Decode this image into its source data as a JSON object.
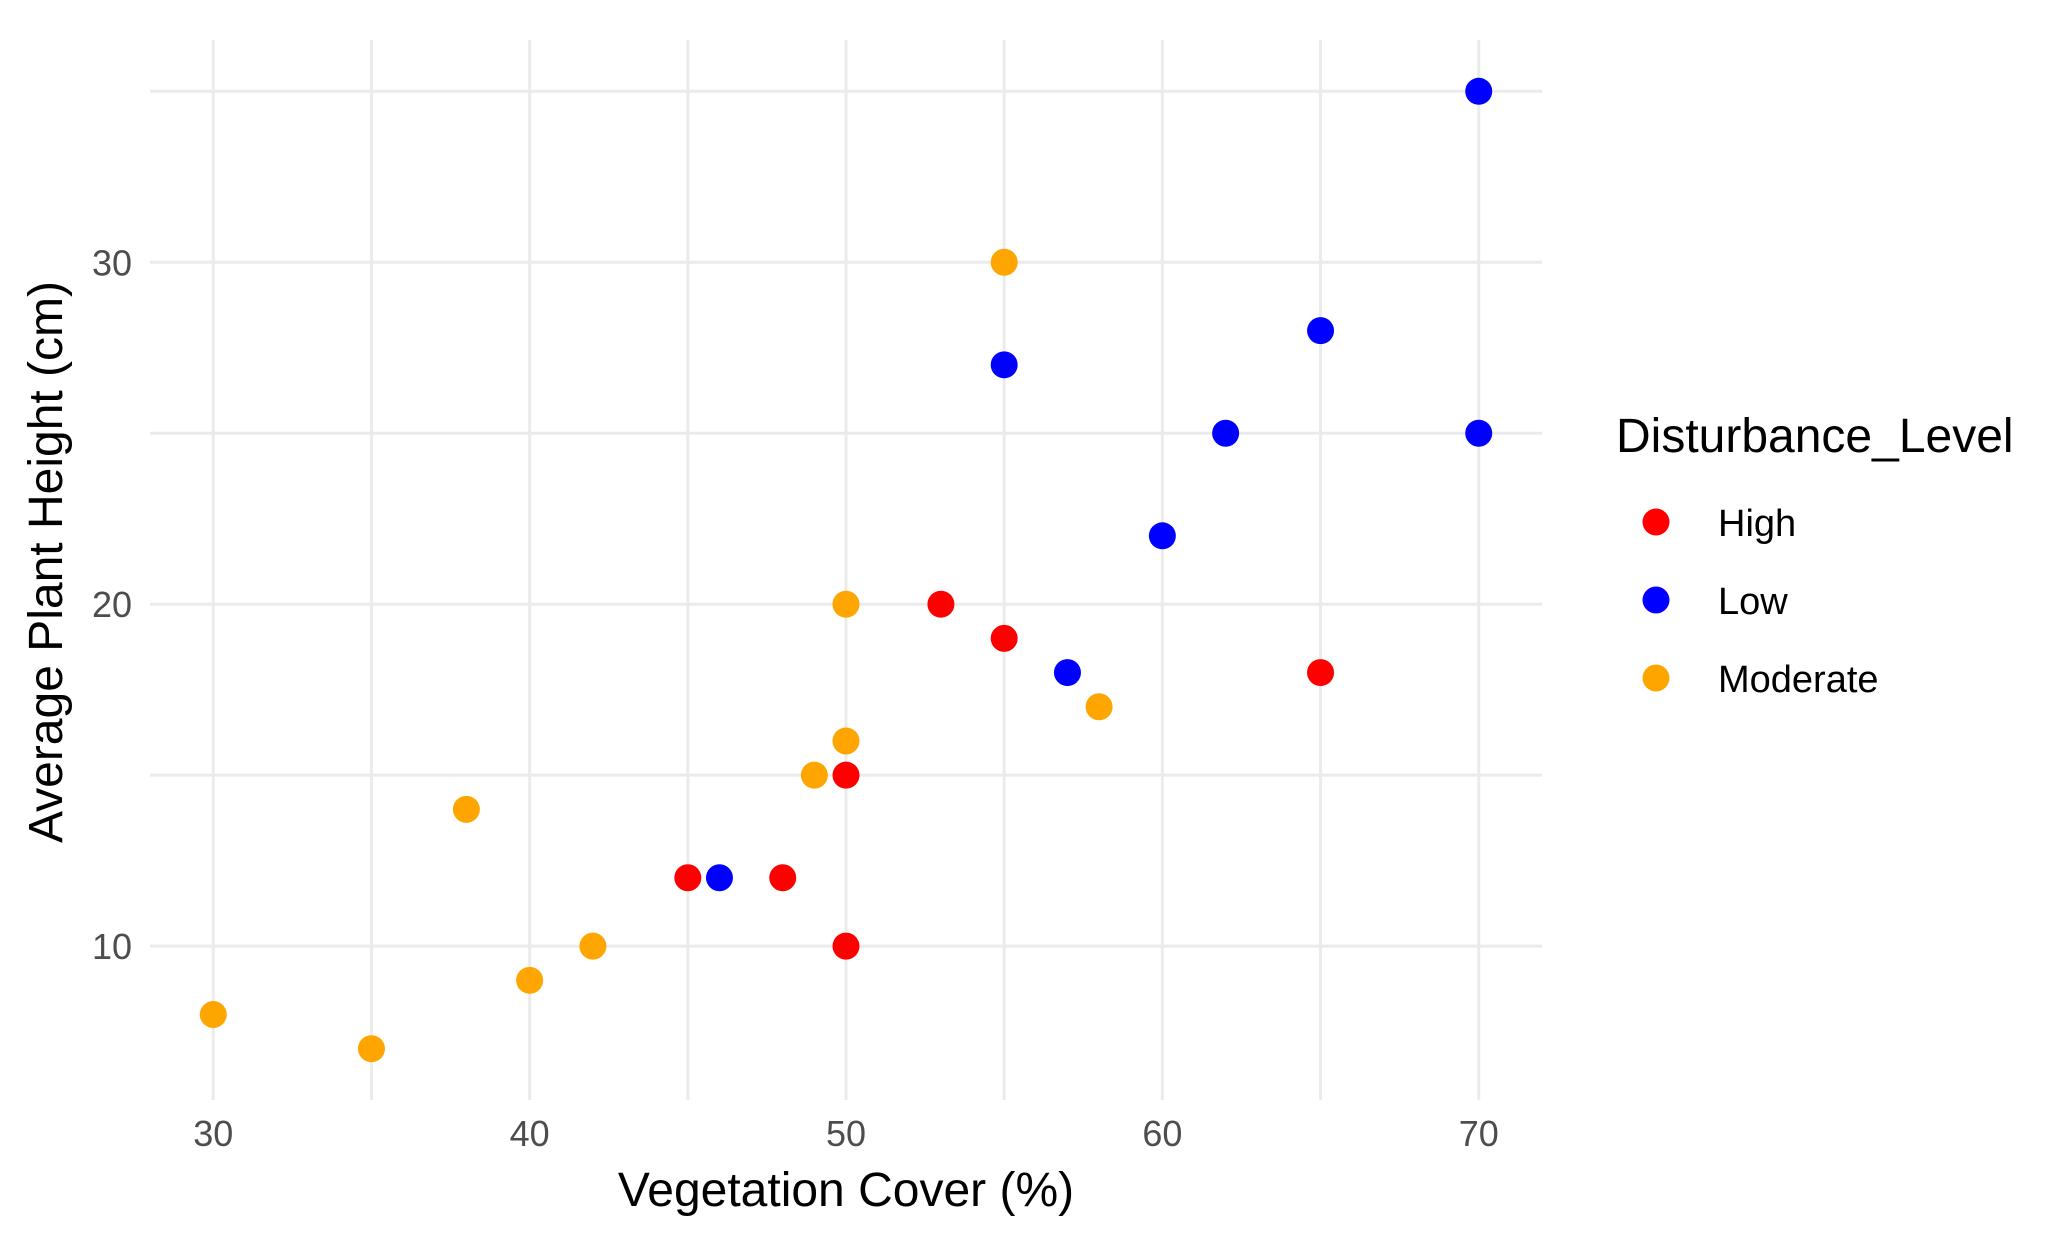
{
  "chart_data": {
    "type": "scatter",
    "title": "",
    "xlabel": "Vegetation Cover (%)",
    "ylabel": "Average Plant Height (cm)",
    "xlim": [
      28,
      72
    ],
    "ylim": [
      5.5,
      36.5
    ],
    "xticks": [
      30,
      40,
      50,
      60,
      70
    ],
    "yticks": [
      10,
      20,
      30
    ],
    "grid": true,
    "legend": {
      "title": "Disturbance_Level",
      "position": "right"
    },
    "series": [
      {
        "name": "High",
        "color": "#ff0000",
        "points": [
          {
            "x": 45,
            "y": 12
          },
          {
            "x": 48,
            "y": 12
          },
          {
            "x": 50,
            "y": 15
          },
          {
            "x": 50,
            "y": 10
          },
          {
            "x": 53,
            "y": 20
          },
          {
            "x": 55,
            "y": 19
          },
          {
            "x": 65,
            "y": 18
          }
        ]
      },
      {
        "name": "Low",
        "color": "#0000ff",
        "points": [
          {
            "x": 46,
            "y": 12
          },
          {
            "x": 55,
            "y": 27
          },
          {
            "x": 57,
            "y": 18
          },
          {
            "x": 60,
            "y": 22
          },
          {
            "x": 62,
            "y": 25
          },
          {
            "x": 65,
            "y": 28
          },
          {
            "x": 70,
            "y": 35
          },
          {
            "x": 70,
            "y": 25
          }
        ]
      },
      {
        "name": "Moderate",
        "color": "#ffa500",
        "points": [
          {
            "x": 30,
            "y": 8
          },
          {
            "x": 35,
            "y": 7
          },
          {
            "x": 38,
            "y": 14
          },
          {
            "x": 40,
            "y": 9
          },
          {
            "x": 42,
            "y": 10
          },
          {
            "x": 49,
            "y": 15
          },
          {
            "x": 50,
            "y": 20
          },
          {
            "x": 50,
            "y": 16
          },
          {
            "x": 55,
            "y": 30
          },
          {
            "x": 58,
            "y": 17
          }
        ]
      }
    ]
  }
}
